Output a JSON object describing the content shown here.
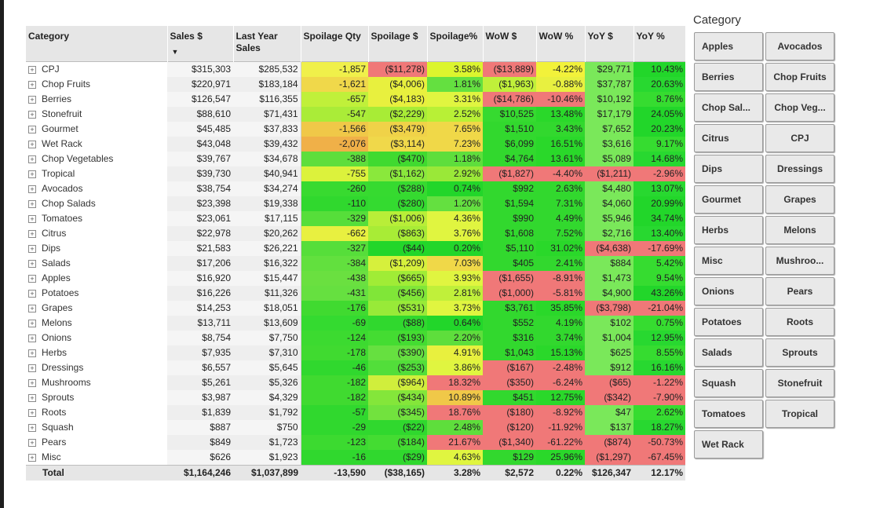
{
  "matrix": {
    "headers": [
      "Category",
      "Sales $",
      "Last Year Sales",
      "Spoilage Qty",
      "Spoilage $",
      "Spoilage%",
      "WoW $",
      "WoW %",
      "YoY $",
      "YoY %"
    ],
    "sort_indicator": "▼",
    "expand_glyph": "+",
    "rows": [
      [
        "CPJ",
        "$315,303",
        "$285,532",
        "-1,857",
        "($11,278)",
        "3.58%",
        "($13,889)",
        "-4.22%",
        "$29,771",
        "10.43%"
      ],
      [
        "Chop Fruits",
        "$220,971",
        "$183,184",
        "-1,621",
        "($4,006)",
        "1.81%",
        "($1,963)",
        "-0.88%",
        "$37,787",
        "20.63%"
      ],
      [
        "Berries",
        "$126,547",
        "$116,355",
        "-657",
        "($4,183)",
        "3.31%",
        "($14,786)",
        "-10.46%",
        "$10,192",
        "8.76%"
      ],
      [
        "Stonefruit",
        "$88,610",
        "$71,431",
        "-547",
        "($2,229)",
        "2.52%",
        "$10,525",
        "13.48%",
        "$17,179",
        "24.05%"
      ],
      [
        "Gourmet",
        "$45,485",
        "$37,833",
        "-1,566",
        "($3,479)",
        "7.65%",
        "$1,510",
        "3.43%",
        "$7,652",
        "20.23%"
      ],
      [
        "Wet Rack",
        "$43,048",
        "$39,432",
        "-2,076",
        "($3,114)",
        "7.23%",
        "$6,099",
        "16.51%",
        "$3,616",
        "9.17%"
      ],
      [
        "Chop Vegetables",
        "$39,767",
        "$34,678",
        "-388",
        "($470)",
        "1.18%",
        "$4,764",
        "13.61%",
        "$5,089",
        "14.68%"
      ],
      [
        "Tropical",
        "$39,730",
        "$40,941",
        "-755",
        "($1,162)",
        "2.92%",
        "($1,827)",
        "-4.40%",
        "($1,211)",
        "-2.96%"
      ],
      [
        "Avocados",
        "$38,754",
        "$34,274",
        "-260",
        "($288)",
        "0.74%",
        "$992",
        "2.63%",
        "$4,480",
        "13.07%"
      ],
      [
        "Chop Salads",
        "$23,398",
        "$19,338",
        "-110",
        "($280)",
        "1.20%",
        "$1,594",
        "7.31%",
        "$4,060",
        "20.99%"
      ],
      [
        "Tomatoes",
        "$23,061",
        "$17,115",
        "-329",
        "($1,006)",
        "4.36%",
        "$990",
        "4.49%",
        "$5,946",
        "34.74%"
      ],
      [
        "Citrus",
        "$22,978",
        "$20,262",
        "-662",
        "($863)",
        "3.76%",
        "$1,608",
        "7.52%",
        "$2,716",
        "13.40%"
      ],
      [
        "Dips",
        "$21,583",
        "$26,221",
        "-327",
        "($44)",
        "0.20%",
        "$5,110",
        "31.02%",
        "($4,638)",
        "-17.69%"
      ],
      [
        "Salads",
        "$17,206",
        "$16,322",
        "-384",
        "($1,209)",
        "7.03%",
        "$405",
        "2.41%",
        "$884",
        "5.42%"
      ],
      [
        "Apples",
        "$16,920",
        "$15,447",
        "-438",
        "($665)",
        "3.93%",
        "($1,655)",
        "-8.91%",
        "$1,473",
        "9.54%"
      ],
      [
        "Potatoes",
        "$16,226",
        "$11,326",
        "-431",
        "($456)",
        "2.81%",
        "($1,000)",
        "-5.81%",
        "$4,900",
        "43.26%"
      ],
      [
        "Grapes",
        "$14,253",
        "$18,051",
        "-176",
        "($531)",
        "3.73%",
        "$3,761",
        "35.85%",
        "($3,798)",
        "-21.04%"
      ],
      [
        "Melons",
        "$13,711",
        "$13,609",
        "-69",
        "($88)",
        "0.64%",
        "$552",
        "4.19%",
        "$102",
        "0.75%"
      ],
      [
        "Onions",
        "$8,754",
        "$7,750",
        "-124",
        "($193)",
        "2.20%",
        "$316",
        "3.74%",
        "$1,004",
        "12.95%"
      ],
      [
        "Herbs",
        "$7,935",
        "$7,310",
        "-178",
        "($390)",
        "4.91%",
        "$1,043",
        "15.13%",
        "$625",
        "8.55%"
      ],
      [
        "Dressings",
        "$6,557",
        "$5,645",
        "-46",
        "($253)",
        "3.86%",
        "($167)",
        "-2.48%",
        "$912",
        "16.16%"
      ],
      [
        "Mushrooms",
        "$5,261",
        "$5,326",
        "-182",
        "($964)",
        "18.32%",
        "($350)",
        "-6.24%",
        "($65)",
        "-1.22%"
      ],
      [
        "Sprouts",
        "$3,987",
        "$4,329",
        "-182",
        "($434)",
        "10.89%",
        "$451",
        "12.75%",
        "($342)",
        "-7.90%"
      ],
      [
        "Roots",
        "$1,839",
        "$1,792",
        "-57",
        "($345)",
        "18.76%",
        "($180)",
        "-8.92%",
        "$47",
        "2.62%"
      ],
      [
        "Squash",
        "$887",
        "$750",
        "-29",
        "($22)",
        "2.48%",
        "($120)",
        "-11.92%",
        "$137",
        "18.27%"
      ],
      [
        "Pears",
        "$849",
        "$1,723",
        "-123",
        "($184)",
        "21.67%",
        "($1,340)",
        "-61.22%",
        "($874)",
        "-50.73%"
      ],
      [
        "Misc",
        "$626",
        "$1,923",
        "-16",
        "($29)",
        "4.63%",
        "$129",
        "25.96%",
        "($1,297)",
        "-67.45%"
      ]
    ],
    "total": [
      "Total",
      "$1,164,246",
      "$1,037,899",
      "-13,590",
      "($38,165)",
      "3.28%",
      "$2,572",
      "0.22%",
      "$126,347",
      "12.17%"
    ],
    "colors": [
      [
        "#f0f04a",
        "#f07878",
        "#dcf52e",
        "#f07878",
        "#f2f23a",
        "#7ae85a",
        "#22d62a"
      ],
      [
        "#f0d84a",
        "#e8f03e",
        "#64e040",
        "#c0f03a",
        "#e8f040",
        "#7ae85a",
        "#28d830"
      ],
      [
        "#c0f03a",
        "#e8f03e",
        "#e0f540",
        "#f07878",
        "#f07878",
        "#7ae85a",
        "#36dc30"
      ],
      [
        "#aaec38",
        "#a8ec36",
        "#b8f036",
        "#36da30",
        "#2ad82a",
        "#7ae85a",
        "#22d62a"
      ],
      [
        "#f0c848",
        "#f0d248",
        "#f0d848",
        "#32d82e",
        "#32d82e",
        "#7ae85a",
        "#22d62a"
      ],
      [
        "#f0b048",
        "#f0d84a",
        "#f0d848",
        "#32d82e",
        "#2ad82a",
        "#7ae85a",
        "#36dc30"
      ],
      [
        "#5ede3c",
        "#40da30",
        "#5ede3c",
        "#32d82e",
        "#2ad82a",
        "#7ae85a",
        "#28d830"
      ],
      [
        "#dcf23c",
        "#8ae83c",
        "#9ae838",
        "#f07878",
        "#f07878",
        "#f07878",
        "#f07878"
      ],
      [
        "#38da30",
        "#36da30",
        "#22d62a",
        "#32d82e",
        "#32d82e",
        "#7ae85a",
        "#28d830"
      ],
      [
        "#30d82e",
        "#34da30",
        "#64e040",
        "#32d82e",
        "#32d82e",
        "#7ae85a",
        "#22d62a"
      ],
      [
        "#56de3a",
        "#b8ee38",
        "#e0f540",
        "#32d82e",
        "#32d82e",
        "#7ae85a",
        "#22d62a"
      ],
      [
        "#e8f040",
        "#a8ec36",
        "#e0f540",
        "#32d82e",
        "#32d82e",
        "#7ae85a",
        "#28d830"
      ],
      [
        "#56de3a",
        "#22d62a",
        "#22d62a",
        "#32d82e",
        "#2ad82a",
        "#f07878",
        "#f07878"
      ],
      [
        "#62e03e",
        "#d6f03c",
        "#f0d848",
        "#32d82e",
        "#32d82e",
        "#7ae85a",
        "#36dc30"
      ],
      [
        "#6ae040",
        "#a0ec36",
        "#e0f540",
        "#f07878",
        "#f07878",
        "#7ae85a",
        "#36dc30"
      ],
      [
        "#66e040",
        "#80e638",
        "#c0f03a",
        "#f07878",
        "#f07878",
        "#7ae85a",
        "#22d62a"
      ],
      [
        "#40da30",
        "#98ea38",
        "#e0f540",
        "#32d82e",
        "#2ad82a",
        "#f07878",
        "#f07878"
      ],
      [
        "#34da30",
        "#30d82e",
        "#22d62a",
        "#32d82e",
        "#32d82e",
        "#7ae85a",
        "#36dc30"
      ],
      [
        "#3cda30",
        "#44dc32",
        "#5ede3c",
        "#32d82e",
        "#32d82e",
        "#7ae85a",
        "#28d830"
      ],
      [
        "#40da30",
        "#66e040",
        "#e8f03e",
        "#32d82e",
        "#2ad82a",
        "#7ae85a",
        "#36dc30"
      ],
      [
        "#30d82e",
        "#52de3a",
        "#e0f540",
        "#f07878",
        "#f07878",
        "#7ae85a",
        "#28d830"
      ],
      [
        "#40da30",
        "#d0ee3c",
        "#f07878",
        "#f07878",
        "#f07878",
        "#f07878",
        "#f07878"
      ],
      [
        "#40da30",
        "#84e63a",
        "#f0c848",
        "#32d82e",
        "#2ad82a",
        "#f07878",
        "#f07878"
      ],
      [
        "#30d82e",
        "#72e23e",
        "#f07878",
        "#f07878",
        "#f07878",
        "#7ae85a",
        "#36dc30"
      ],
      [
        "#30d82e",
        "#30d82e",
        "#5ede3c",
        "#f07878",
        "#f07878",
        "#7ae85a",
        "#28d830"
      ],
      [
        "#3cda30",
        "#44dc32",
        "#f07878",
        "#f07878",
        "#f07878",
        "#f07878",
        "#f07878"
      ],
      [
        "#30d82e",
        "#30d82e",
        "#e0f540",
        "#32d82e",
        "#2ad82a",
        "#f07878",
        "#f07878"
      ]
    ]
  },
  "slicer": {
    "title": "Category",
    "items": [
      "Apples",
      "Avocados",
      "Berries",
      "Chop Fruits",
      "Chop Sal...",
      "Chop Veg...",
      "Citrus",
      "CPJ",
      "Dips",
      "Dressings",
      "Gourmet",
      "Grapes",
      "Herbs",
      "Melons",
      "Misc",
      "Mushroo...",
      "Onions",
      "Pears",
      "Potatoes",
      "Roots",
      "Salads",
      "Sprouts",
      "Squash",
      "Stonefruit",
      "Tomatoes",
      "Tropical",
      "Wet Rack"
    ]
  }
}
